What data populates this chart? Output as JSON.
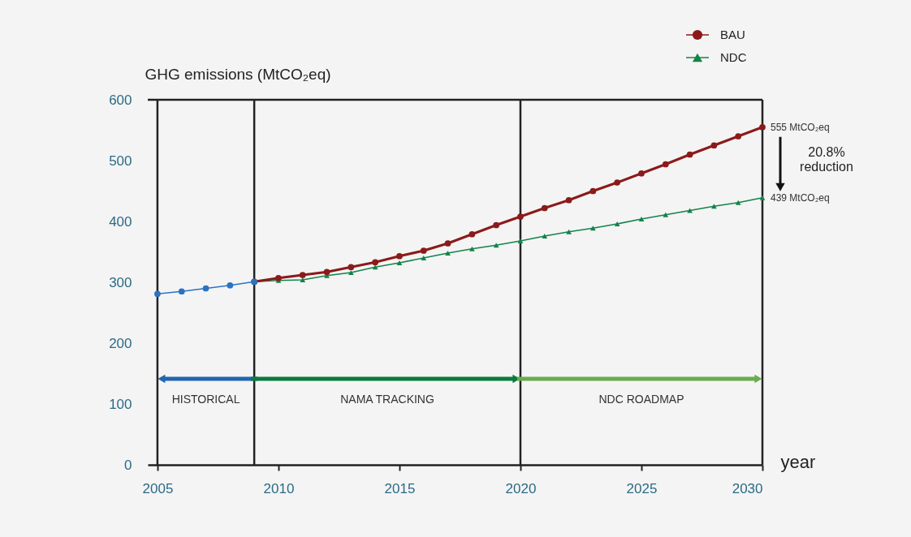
{
  "chart_data": {
    "type": "line",
    "ylabel": "GHG emissions (MtCO₂eq)",
    "xlabel": "year",
    "xlim": [
      2004.6,
      2030
    ],
    "xticks": [
      2005,
      2010,
      2015,
      2020,
      2025,
      2030
    ],
    "ylim": [
      0,
      600
    ],
    "yticks": [
      0,
      100,
      200,
      300,
      400,
      500,
      600
    ],
    "grid": false,
    "legend": "top right",
    "line_style": "solid",
    "series": [
      {
        "color": "#2b73c2",
        "marker": "circle",
        "x": [
          2005,
          2006,
          2007,
          2008,
          2009
        ],
        "values": [
          281,
          285,
          290,
          295,
          301
        ]
      },
      {
        "name": "BAU",
        "color": "#8b1a1a",
        "marker": "circle",
        "x": [
          2009,
          2010,
          2011,
          2012,
          2013,
          2014,
          2015,
          2016,
          2017,
          2018,
          2019,
          2020,
          2021,
          2022,
          2023,
          2024,
          2025,
          2026,
          2027,
          2028,
          2029,
          2030
        ],
        "values": [
          301,
          307,
          312,
          317,
          325,
          333,
          343,
          352,
          364,
          379,
          394,
          408,
          422,
          435,
          450,
          464,
          479,
          494,
          510,
          525,
          540,
          555
        ]
      },
      {
        "name": "NDC",
        "color": "#13834a",
        "marker": "triangle",
        "x": [
          2009,
          2010,
          2011,
          2012,
          2013,
          2014,
          2015,
          2016,
          2017,
          2018,
          2019,
          2020,
          2021,
          2022,
          2023,
          2024,
          2025,
          2026,
          2027,
          2028,
          2029,
          2030
        ],
        "values": [
          301,
          303,
          304,
          311,
          316,
          325,
          332,
          340,
          348,
          355,
          361,
          368,
          376,
          383,
          389,
          396,
          404,
          411,
          418,
          425,
          431,
          439
        ]
      }
    ],
    "ref_lines": [
      {
        "axis": "x",
        "value": 2005,
        "color": "#222222"
      },
      {
        "axis": "x",
        "value": 2009,
        "color": "#222222"
      },
      {
        "axis": "x",
        "value": 2020,
        "color": "#222222"
      }
    ],
    "annotations": [
      {
        "text": "555 MtCO₂eq",
        "x": 2030,
        "y": 555
      },
      {
        "text": "439 MtCO₂eq",
        "x": 2030,
        "y": 439
      },
      "HISTORICAL",
      "NAMA TRACKING",
      "NDC ROADMAP",
      "20.8% reduction"
    ]
  }
}
